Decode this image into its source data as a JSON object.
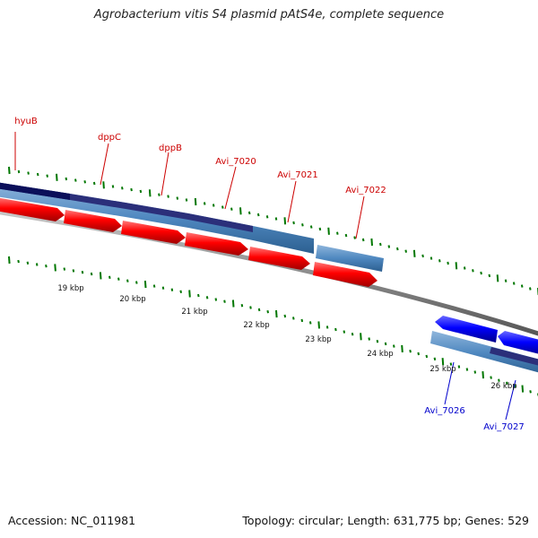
{
  "title": "Agrobacterium vitis S4 plasmid pAtS4e, complete sequence",
  "footer": {
    "accession_label": "Accession:",
    "accession": "NC_011981",
    "topology_label": "Topology:",
    "topology": "circular",
    "length_label": "Length:",
    "length": "631,775 bp",
    "genes_label": "Genes:",
    "genes": "529"
  },
  "axis_ticks": [
    "19 kbp",
    "20 kbp",
    "21 kbp",
    "22 kbp",
    "23 kbp",
    "24 kbp",
    "25 kbp",
    "26 kbp"
  ],
  "forward_genes": [
    "hyuB",
    "dppC",
    "dppB",
    "Avi_7020",
    "Avi_7021",
    "Avi_7022"
  ],
  "reverse_genes": [
    "Avi_7026",
    "Avi_7027"
  ],
  "colors": {
    "forward_gene": "#ff0000",
    "reverse_gene": "#0000ff",
    "tick": "#007700",
    "backbone": "#8c8c8c",
    "cds_steel": "#4f88c0",
    "cds_purple": "#443388"
  }
}
